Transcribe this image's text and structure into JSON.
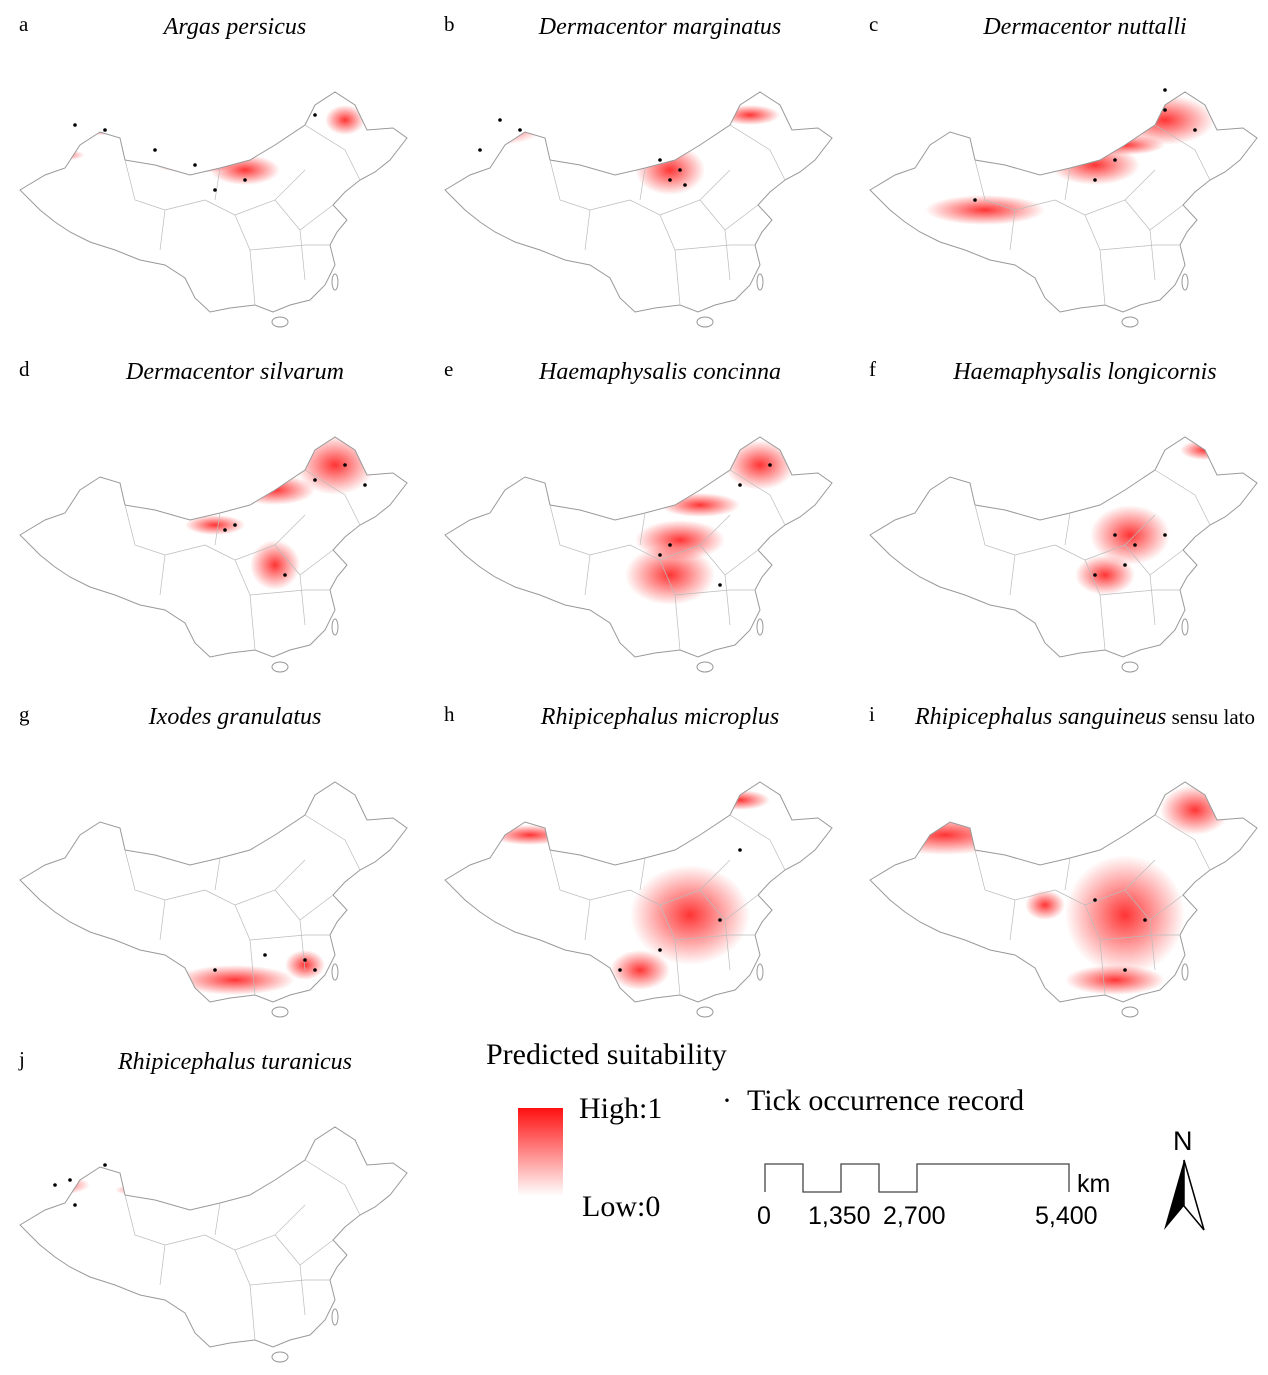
{
  "panels": [
    {
      "letter": "a",
      "species": "Argas persicus"
    },
    {
      "letter": "b",
      "species": "Dermacentor marginatus"
    },
    {
      "letter": "c",
      "species": "Dermacentor nuttalli"
    },
    {
      "letter": "d",
      "species": "Dermacentor silvarum"
    },
    {
      "letter": "e",
      "species": "Haemaphysalis concinna"
    },
    {
      "letter": "f",
      "species": "Haemaphysalis longicornis"
    },
    {
      "letter": "g",
      "species": "Ixodes granulatus"
    },
    {
      "letter": "h",
      "species": "Rhipicephalus microplus"
    },
    {
      "letter": "i",
      "species": "Rhipicephalus sanguineus",
      "suffix": " sensu lato"
    },
    {
      "letter": "j",
      "species": "Rhipicephalus turanicus"
    }
  ],
  "legend": {
    "title": "Predicted suitability",
    "high": "High:1",
    "low": "Low:0",
    "record_symbol": "·",
    "record": "Tick occurrence record",
    "colors": {
      "high": "#ff1010",
      "low": "#ffffff",
      "border": "#999999"
    }
  },
  "scalebar": {
    "unit": "km",
    "ticks": [
      "0",
      "1,350",
      "2,700",
      "5,400"
    ]
  },
  "north": "N"
}
